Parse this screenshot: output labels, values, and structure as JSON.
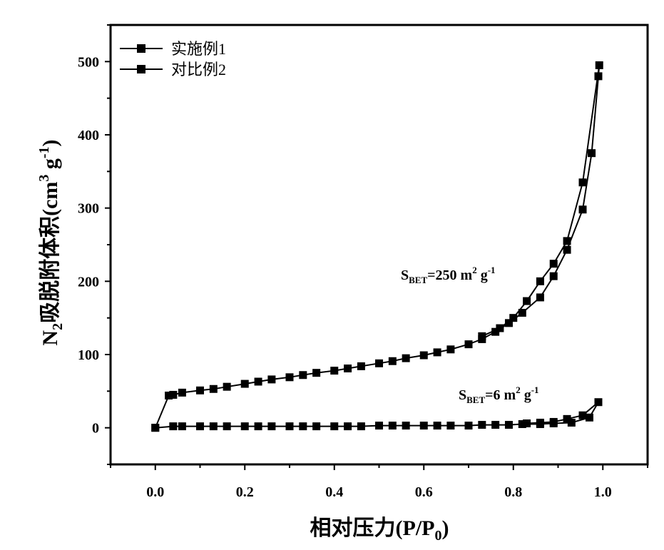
{
  "chart_data": {
    "type": "line",
    "xlabel": {
      "main": "相对压力(P/P",
      "sub": "0",
      "end": ")"
    },
    "ylabel": {
      "n": "N",
      "sub": "2",
      "main": "吸脱附体积(cm",
      "sup1": "3",
      "mid": " g",
      "sup2": "-1",
      "end": ")"
    },
    "xlim": [
      -0.1,
      1.1
    ],
    "ylim": [
      -50,
      550
    ],
    "xticks": [
      "0.0",
      "0.2",
      "0.4",
      "0.6",
      "0.8",
      "1.0"
    ],
    "yticks": [
      "0",
      "100",
      "200",
      "300",
      "400",
      "500"
    ],
    "grid": false,
    "legend_position": "top-left",
    "marker": "square",
    "color": "#000000",
    "series": [
      {
        "name": "实施例1",
        "x": [
          0.0,
          0.03,
          0.04,
          0.06,
          0.1,
          0.13,
          0.16,
          0.2,
          0.23,
          0.26,
          0.3,
          0.33,
          0.36,
          0.4,
          0.43,
          0.46,
          0.5,
          0.53,
          0.56,
          0.6,
          0.63,
          0.66,
          0.7,
          0.73,
          0.76,
          0.79,
          0.82,
          0.86,
          0.89,
          0.92,
          0.955,
          0.975,
          0.99,
          0.992,
          0.955,
          0.92,
          0.89,
          0.86,
          0.83,
          0.8,
          0.77,
          0.73
        ],
        "y": [
          0,
          44,
          45,
          48,
          51,
          53,
          56,
          60,
          63,
          66,
          69,
          72,
          75,
          78,
          81,
          84,
          88,
          91,
          95,
          99,
          103,
          107,
          114,
          121,
          131,
          143,
          157,
          178,
          207,
          243,
          298,
          375,
          480,
          495,
          335,
          255,
          224,
          200,
          173,
          150,
          136,
          125
        ]
      },
      {
        "name": "对比例2",
        "x": [
          0.0,
          0.04,
          0.06,
          0.1,
          0.13,
          0.16,
          0.2,
          0.23,
          0.26,
          0.3,
          0.33,
          0.36,
          0.4,
          0.43,
          0.46,
          0.5,
          0.53,
          0.56,
          0.6,
          0.63,
          0.66,
          0.7,
          0.73,
          0.76,
          0.79,
          0.82,
          0.86,
          0.89,
          0.93,
          0.97,
          0.99,
          0.955,
          0.92,
          0.89,
          0.86,
          0.83
        ],
        "y": [
          0,
          2,
          2,
          2,
          2,
          2,
          2,
          2,
          2,
          2,
          2,
          2,
          2,
          2,
          2,
          3,
          3,
          3,
          3,
          3,
          3,
          3,
          4,
          4,
          4,
          5,
          5,
          6,
          7,
          14,
          35,
          17,
          12,
          8,
          7,
          6
        ]
      }
    ],
    "annotations": [
      {
        "symbol": "S",
        "sub": "BET",
        "value": "=250 m",
        "sup1": "2",
        "unit": " g",
        "sup2": "-1",
        "at": [
          0.56,
          210
        ]
      },
      {
        "symbol": "S",
        "sub": "BET",
        "value": "=6 m",
        "sup1": "2",
        "unit": " g",
        "sup2": "-1",
        "at": [
          0.68,
          42
        ]
      }
    ]
  }
}
